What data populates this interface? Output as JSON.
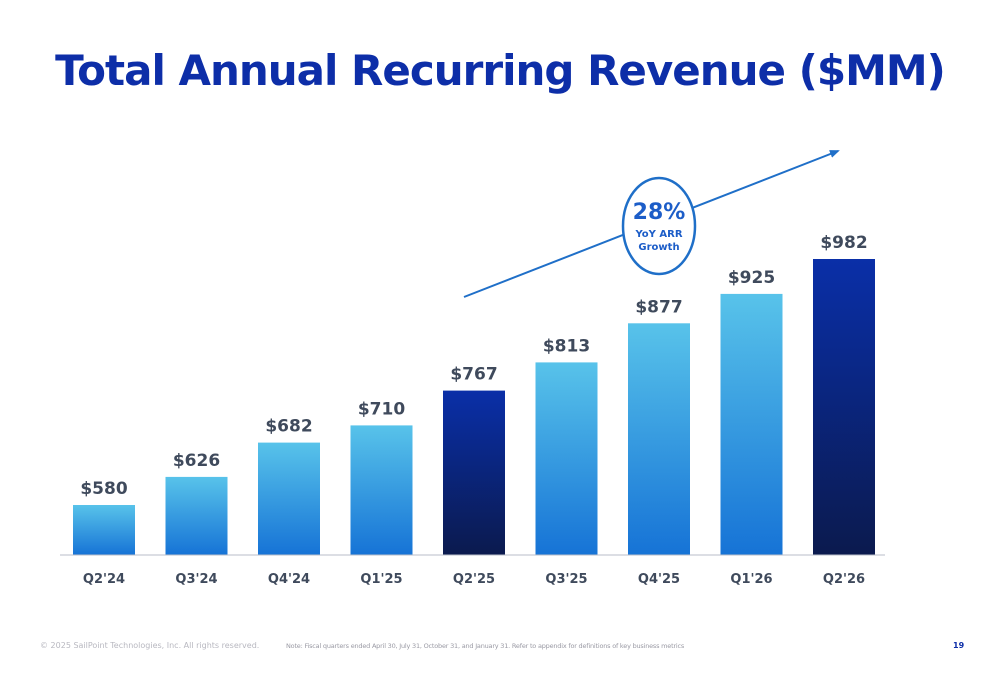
{
  "title": "Total Annual Recurring Revenue ($MM)",
  "callout": {
    "value": "28%",
    "line1": "YoY ARR",
    "line2": "Growth"
  },
  "footer": {
    "copyright": "© 2025 SailPoint Technologies, Inc. All rights reserved.",
    "note": "Note: Fiscal quarters ended April 30, July 31, October 31, and January 31. Refer to appendix for definitions of key business metrics",
    "page": "19"
  },
  "colors": {
    "light_bar_top": "#58c3ea",
    "light_bar_bottom": "#1673d6",
    "dark_bar_top": "#0a2fa8",
    "dark_bar_bottom": "#0b1a4e",
    "title": "#0d2ea8",
    "arrow": "#1f6fc8"
  },
  "chart_data": {
    "type": "bar",
    "title": "Total Annual Recurring Revenue ($MM)",
    "categories": [
      "Q2'24",
      "Q3'24",
      "Q4'24",
      "Q1'25",
      "Q2'25",
      "Q3'25",
      "Q4'25",
      "Q1'26",
      "Q2'26"
    ],
    "values": [
      580,
      626,
      682,
      710,
      767,
      813,
      877,
      925,
      982
    ],
    "labels": [
      "$580",
      "$626",
      "$682",
      "$710",
      "$767",
      "$813",
      "$877",
      "$925",
      "$982"
    ],
    "highlight": [
      false,
      false,
      false,
      false,
      true,
      false,
      false,
      false,
      true
    ],
    "xlabel": "",
    "ylabel": "",
    "grid": false,
    "legend": "none"
  }
}
